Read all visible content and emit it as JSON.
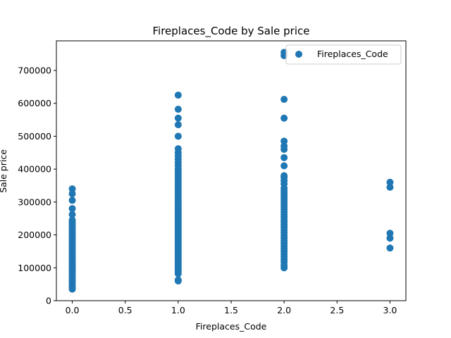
{
  "chart_data": {
    "type": "scatter",
    "title": "Fireplaces_Code by Sale price",
    "xlabel": "Fireplaces_Code",
    "ylabel": "Sale price",
    "xlim": [
      -0.15,
      3.15
    ],
    "ylim": [
      0,
      790000
    ],
    "x_ticks": [
      0.0,
      0.5,
      1.0,
      1.5,
      2.0,
      2.5,
      3.0
    ],
    "x_tick_labels": [
      "0.0",
      "0.5",
      "1.0",
      "1.5",
      "2.0",
      "2.5",
      "3.0"
    ],
    "y_ticks": [
      0,
      100000,
      200000,
      300000,
      400000,
      500000,
      600000,
      700000
    ],
    "y_tick_labels": [
      "0",
      "100000",
      "200000",
      "300000",
      "400000",
      "500000",
      "600000",
      "700000"
    ],
    "grid": false,
    "legend_position": "top-right",
    "marker_color": "#1f77b4",
    "series": [
      {
        "name": "Fireplaces_Code",
        "points": [
          [
            0,
            35000
          ],
          [
            0,
            40000
          ],
          [
            0,
            45000
          ],
          [
            0,
            52000
          ],
          [
            0,
            58000
          ],
          [
            0,
            64000
          ],
          [
            0,
            70000
          ],
          [
            0,
            76000
          ],
          [
            0,
            82000
          ],
          [
            0,
            88000
          ],
          [
            0,
            94000
          ],
          [
            0,
            100000
          ],
          [
            0,
            106000
          ],
          [
            0,
            112000
          ],
          [
            0,
            118000
          ],
          [
            0,
            124000
          ],
          [
            0,
            130000
          ],
          [
            0,
            136000
          ],
          [
            0,
            142000
          ],
          [
            0,
            148000
          ],
          [
            0,
            154000
          ],
          [
            0,
            160000
          ],
          [
            0,
            166000
          ],
          [
            0,
            172000
          ],
          [
            0,
            178000
          ],
          [
            0,
            184000
          ],
          [
            0,
            190000
          ],
          [
            0,
            196000
          ],
          [
            0,
            202000
          ],
          [
            0,
            208000
          ],
          [
            0,
            214000
          ],
          [
            0,
            220000
          ],
          [
            0,
            226000
          ],
          [
            0,
            232000
          ],
          [
            0,
            238000
          ],
          [
            0,
            245000
          ],
          [
            0,
            262000
          ],
          [
            0,
            280000
          ],
          [
            0,
            305000
          ],
          [
            0,
            325000
          ],
          [
            0,
            340000
          ],
          [
            1,
            60000
          ],
          [
            1,
            63000
          ],
          [
            1,
            82000
          ],
          [
            1,
            88000
          ],
          [
            1,
            94000
          ],
          [
            1,
            100000
          ],
          [
            1,
            106000
          ],
          [
            1,
            112000
          ],
          [
            1,
            118000
          ],
          [
            1,
            124000
          ],
          [
            1,
            130000
          ],
          [
            1,
            136000
          ],
          [
            1,
            142000
          ],
          [
            1,
            148000
          ],
          [
            1,
            154000
          ],
          [
            1,
            160000
          ],
          [
            1,
            166000
          ],
          [
            1,
            172000
          ],
          [
            1,
            178000
          ],
          [
            1,
            184000
          ],
          [
            1,
            190000
          ],
          [
            1,
            196000
          ],
          [
            1,
            202000
          ],
          [
            1,
            208000
          ],
          [
            1,
            214000
          ],
          [
            1,
            220000
          ],
          [
            1,
            226000
          ],
          [
            1,
            232000
          ],
          [
            1,
            238000
          ],
          [
            1,
            244000
          ],
          [
            1,
            250000
          ],
          [
            1,
            256000
          ],
          [
            1,
            262000
          ],
          [
            1,
            268000
          ],
          [
            1,
            274000
          ],
          [
            1,
            280000
          ],
          [
            1,
            286000
          ],
          [
            1,
            292000
          ],
          [
            1,
            298000
          ],
          [
            1,
            305000
          ],
          [
            1,
            312000
          ],
          [
            1,
            320000
          ],
          [
            1,
            328000
          ],
          [
            1,
            336000
          ],
          [
            1,
            344000
          ],
          [
            1,
            352000
          ],
          [
            1,
            360000
          ],
          [
            1,
            368000
          ],
          [
            1,
            376000
          ],
          [
            1,
            384000
          ],
          [
            1,
            392000
          ],
          [
            1,
            400000
          ],
          [
            1,
            410000
          ],
          [
            1,
            420000
          ],
          [
            1,
            430000
          ],
          [
            1,
            440000
          ],
          [
            1,
            450000
          ],
          [
            1,
            462000
          ],
          [
            1,
            500000
          ],
          [
            1,
            535000
          ],
          [
            1,
            555000
          ],
          [
            1,
            582000
          ],
          [
            1,
            625000
          ],
          [
            2,
            100000
          ],
          [
            2,
            108000
          ],
          [
            2,
            118000
          ],
          [
            2,
            126000
          ],
          [
            2,
            134000
          ],
          [
            2,
            142000
          ],
          [
            2,
            150000
          ],
          [
            2,
            158000
          ],
          [
            2,
            166000
          ],
          [
            2,
            174000
          ],
          [
            2,
            182000
          ],
          [
            2,
            190000
          ],
          [
            2,
            198000
          ],
          [
            2,
            206000
          ],
          [
            2,
            214000
          ],
          [
            2,
            222000
          ],
          [
            2,
            230000
          ],
          [
            2,
            238000
          ],
          [
            2,
            246000
          ],
          [
            2,
            254000
          ],
          [
            2,
            262000
          ],
          [
            2,
            270000
          ],
          [
            2,
            278000
          ],
          [
            2,
            286000
          ],
          [
            2,
            294000
          ],
          [
            2,
            302000
          ],
          [
            2,
            310000
          ],
          [
            2,
            318000
          ],
          [
            2,
            326000
          ],
          [
            2,
            334000
          ],
          [
            2,
            342000
          ],
          [
            2,
            355000
          ],
          [
            2,
            365000
          ],
          [
            2,
            375000
          ],
          [
            2,
            380000
          ],
          [
            2,
            410000
          ],
          [
            2,
            435000
          ],
          [
            2,
            460000
          ],
          [
            2,
            470000
          ],
          [
            2,
            485000
          ],
          [
            2,
            555000
          ],
          [
            2,
            612000
          ],
          [
            2,
            745000
          ],
          [
            2,
            755000
          ],
          [
            3,
            160000
          ],
          [
            3,
            190000
          ],
          [
            3,
            205000
          ],
          [
            3,
            345000
          ],
          [
            3,
            360000
          ]
        ]
      }
    ]
  }
}
